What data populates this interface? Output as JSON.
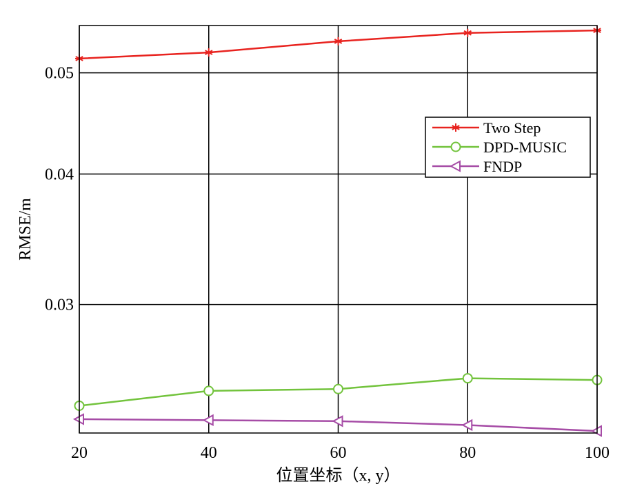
{
  "chart_data": {
    "type": "line",
    "title": "",
    "xlabel": "位置坐标（x, y）",
    "ylabel": "RMSE/m",
    "xlim": [
      20,
      100
    ],
    "ylim": [
      0.0226,
      0.0555
    ],
    "scale_y": "log",
    "xticks": [
      "20",
      "40",
      "60",
      "80",
      "100"
    ],
    "yticks": [
      {
        "value": 0.03,
        "label": "0.03"
      },
      {
        "value": 0.04,
        "label": "0.04"
      },
      {
        "value": 0.05,
        "label": "0.05"
      }
    ],
    "grid": true,
    "legend_position": "right",
    "x": [
      20,
      40,
      60,
      80,
      100
    ],
    "series": [
      {
        "name": "Two Step",
        "color": "#e8231f",
        "marker": "asterisk",
        "values": [
          0.0516,
          0.0523,
          0.0536,
          0.0546,
          0.0549
        ]
      },
      {
        "name": "DPD-MUSIC",
        "color": "#72c33c",
        "marker": "circle",
        "values": [
          0.024,
          0.0248,
          0.0249,
          0.0255,
          0.0254
        ]
      },
      {
        "name": "FNDP",
        "color": "#a64ca6",
        "marker": "triangle-left",
        "values": [
          0.0233,
          0.02325,
          0.0232,
          0.023,
          0.0227
        ]
      }
    ]
  }
}
